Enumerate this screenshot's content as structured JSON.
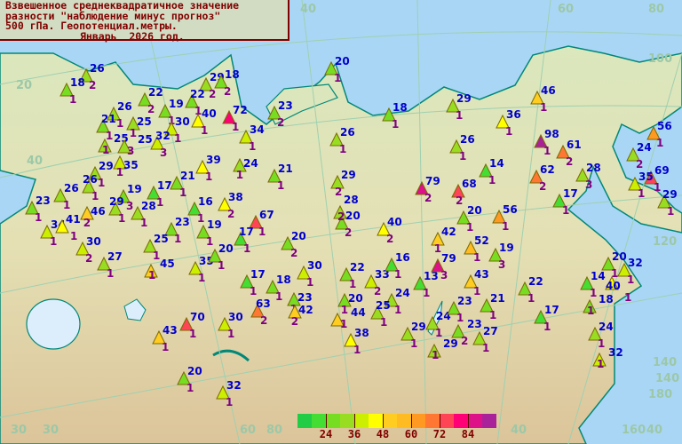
{
  "title": {
    "line1": "Взвешенное среднеквадратичное значение",
    "line2": "разности \"наблюдение минус прогноз\"",
    "line3": "500 гПа. Геопотенциал.метры.",
    "line4": "Январь  2026 год."
  },
  "legend": {
    "colors": [
      "#22cc44",
      "#44dd33",
      "#77dd22",
      "#99dd22",
      "#ccee00",
      "#ffff00",
      "#ffcc22",
      "#ffbb22",
      "#ff9922",
      "#ff7733",
      "#ff4455",
      "#ff0077",
      "#dd1188",
      "#aa2299"
    ],
    "tick_labels": [
      "24",
      "36",
      "48",
      "60",
      "72",
      "84"
    ]
  },
  "grid_labels": [
    "20",
    "40",
    "60",
    "80",
    "100",
    "120",
    "140",
    "160",
    "180",
    "30",
    "30",
    "40",
    "40",
    "60",
    "80",
    "40",
    "140"
  ],
  "stations": [
    {
      "value": 26,
      "count": 2
    },
    {
      "value": 18,
      "count": 1
    },
    {
      "value": 26,
      "count": 1
    },
    {
      "value": 22,
      "count": 2
    },
    {
      "value": 19,
      "count": 1
    },
    {
      "value": 29,
      "count": 2
    },
    {
      "value": 18,
      "count": 2
    },
    {
      "value": 22,
      "count": 1
    },
    {
      "value": 40,
      "count": 1
    },
    {
      "value": 72,
      "count": 1
    },
    {
      "value": 23,
      "count": 2
    },
    {
      "value": 20,
      "count": 1
    },
    {
      "value": 21,
      "count": 1
    },
    {
      "value": 25,
      "count": 1
    },
    {
      "value": 30,
      "count": 1
    },
    {
      "value": 25,
      "count": 1
    },
    {
      "value": 25,
      "count": 3
    },
    {
      "value": 32,
      "count": 3
    },
    {
      "value": 34,
      "count": 1
    },
    {
      "value": 35,
      "count": 1
    },
    {
      "value": 39,
      "count": 1
    },
    {
      "value": 24,
      "count": 1
    },
    {
      "value": 29,
      "count": 1
    },
    {
      "value": 21,
      "count": 1
    },
    {
      "value": 26,
      "count": 1
    },
    {
      "value": 26,
      "count": 1
    },
    {
      "value": 19,
      "count": 3
    },
    {
      "value": 17,
      "count": 1
    },
    {
      "value": 21,
      "count": 1
    },
    {
      "value": 23,
      "count": 1
    },
    {
      "value": 46,
      "count": 2
    },
    {
      "value": 29,
      "count": 1
    },
    {
      "value": 28,
      "count": 1
    },
    {
      "value": 16,
      "count": 1
    },
    {
      "value": 38,
      "count": 2
    },
    {
      "value": 67,
      "count": 1
    },
    {
      "value": 34,
      "count": 1
    },
    {
      "value": 41,
      "count": 1
    },
    {
      "value": 23,
      "count": 1
    },
    {
      "value": 19,
      "count": 1
    },
    {
      "value": 17,
      "count": 1
    },
    {
      "value": 20,
      "count": 2
    },
    {
      "value": 30,
      "count": 2
    },
    {
      "value": 27,
      "count": 1
    },
    {
      "value": 25,
      "count": 1
    },
    {
      "value": 45,
      "count": 1
    },
    {
      "value": 35,
      "count": 1
    },
    {
      "value": 20,
      "count": 1
    },
    {
      "value": 17,
      "count": 1
    },
    {
      "value": 18,
      "count": 1
    },
    {
      "value": 30,
      "count": 1
    },
    {
      "value": 23,
      "count": 1
    },
    {
      "value": 42,
      "count": 2
    },
    {
      "value": 63,
      "count": 2
    },
    {
      "value": 22,
      "count": 1
    },
    {
      "value": 33,
      "count": 2
    },
    {
      "value": 20,
      "count": 1
    },
    {
      "value": 44,
      "count": 1
    },
    {
      "value": 16,
      "count": 1
    },
    {
      "value": 24,
      "count": 1
    },
    {
      "value": 25,
      "count": 1
    },
    {
      "value": 13,
      "count": 1
    },
    {
      "value": 38,
      "count": 1
    },
    {
      "value": 24,
      "count": 1
    },
    {
      "value": 29,
      "count": 1
    },
    {
      "value": 29,
      "count": 1
    },
    {
      "value": 23,
      "count": 1
    },
    {
      "value": 23,
      "count": 2
    },
    {
      "value": 21,
      "count": 1
    },
    {
      "value": 27,
      "count": 1
    },
    {
      "value": 43,
      "count": 1
    },
    {
      "value": 79,
      "count": 3
    },
    {
      "value": 52,
      "count": 1
    },
    {
      "value": 19,
      "count": 3
    },
    {
      "value": 42,
      "count": 1
    },
    {
      "value": 20,
      "count": 2
    },
    {
      "value": 40,
      "count": 2
    },
    {
      "value": 28,
      "count": 2
    },
    {
      "value": 29,
      "count": 2
    },
    {
      "value": 20,
      "count": 1
    },
    {
      "value": 56,
      "count": 1
    },
    {
      "value": 79,
      "count": 2
    },
    {
      "value": 68,
      "count": 2
    },
    {
      "value": 26,
      "count": 1
    },
    {
      "value": 18,
      "count": 1
    },
    {
      "value": 29,
      "count": 1
    },
    {
      "value": 36,
      "count": 1
    },
    {
      "value": 26,
      "count": 1
    },
    {
      "value": 46,
      "count": 1
    },
    {
      "value": 98,
      "count": 1
    },
    {
      "value": 61,
      "count": 2
    },
    {
      "value": 14,
      "count": 1
    },
    {
      "value": 62,
      "count": 2
    },
    {
      "value": 28,
      "count": 3
    },
    {
      "value": 17,
      "count": 1
    },
    {
      "value": 56,
      "count": 1
    },
    {
      "value": 24,
      "count": 2
    },
    {
      "value": 69,
      "count": 1
    },
    {
      "value": 35,
      "count": 1
    },
    {
      "value": 29,
      "count": 1
    },
    {
      "value": 22,
      "count": 1
    },
    {
      "value": 20,
      "count": 1
    },
    {
      "value": 32,
      "count": 1
    },
    {
      "value": 14,
      "count": 1
    },
    {
      "value": 40,
      "count": 1
    },
    {
      "value": 18,
      "count": 1
    },
    {
      "value": 17,
      "count": 1
    },
    {
      "value": 24,
      "count": 1
    },
    {
      "value": 32,
      "count": 1
    },
    {
      "value": 70,
      "count": 1
    },
    {
      "value": 30,
      "count": 1
    },
    {
      "value": 43,
      "count": 1
    },
    {
      "value": 20,
      "count": 1
    },
    {
      "value": 32,
      "count": 1
    }
  ]
}
